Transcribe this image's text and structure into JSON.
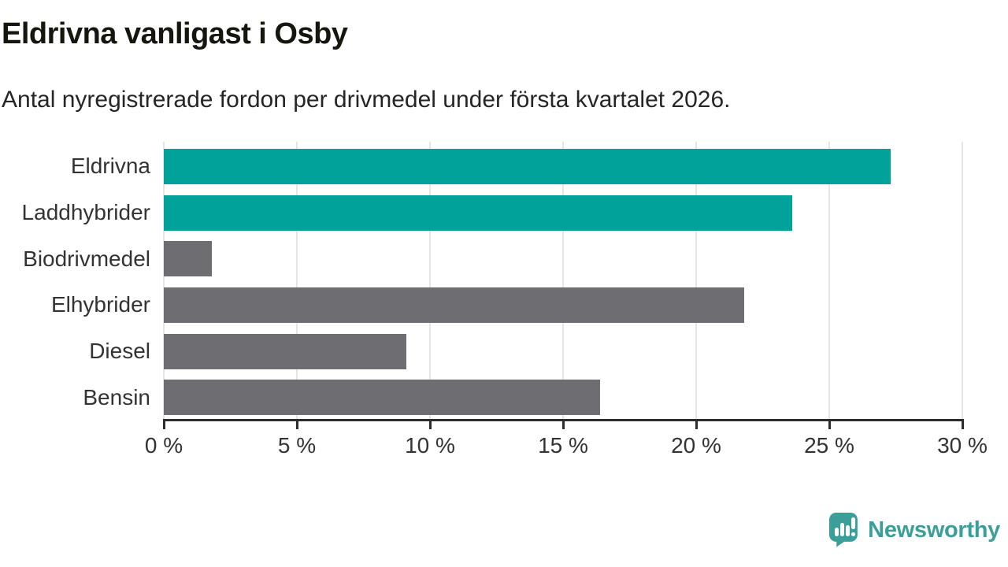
{
  "header": {
    "title": "Eldrivna vanligast i Osby",
    "subtitle": "Antal nyregistrerade fordon per drivmedel under första kvartalet 2026."
  },
  "chart_data": {
    "type": "bar",
    "orientation": "horizontal",
    "title": "Eldrivna vanligast i Osby",
    "subtitle": "Antal nyregistrerade fordon per drivmedel under första kvartalet 2026.",
    "categories": [
      "Eldrivna",
      "Laddhybrider",
      "Biodrivmedel",
      "Elhybrider",
      "Diesel",
      "Bensin"
    ],
    "values": [
      27.3,
      23.6,
      1.8,
      21.8,
      9.1,
      16.4
    ],
    "unit": "%",
    "bar_colors": [
      "#00a29a",
      "#00a29a",
      "#6e6d72",
      "#6e6d72",
      "#6e6d72",
      "#6e6d72"
    ],
    "highlight_color": "#00a29a",
    "base_color": "#6e6d72",
    "xlabel": "",
    "ylabel": "",
    "xlim": [
      0,
      30
    ],
    "x_ticks": [
      0,
      5,
      10,
      15,
      20,
      25,
      30
    ],
    "x_tick_labels": [
      "0 %",
      "5 %",
      "10 %",
      "15 %",
      "20 %",
      "25 %",
      "30 %"
    ],
    "grid": "vertical",
    "legend": "none",
    "colors": {
      "gridline": "#e3e6e5",
      "axis": "#2d2d2d",
      "text": "#333333"
    }
  },
  "footer": {
    "brand": "Newsworthy",
    "brand_color": "#3a9f99",
    "logo_icon": "newsworthy-speech-bubble-chart-icon"
  }
}
